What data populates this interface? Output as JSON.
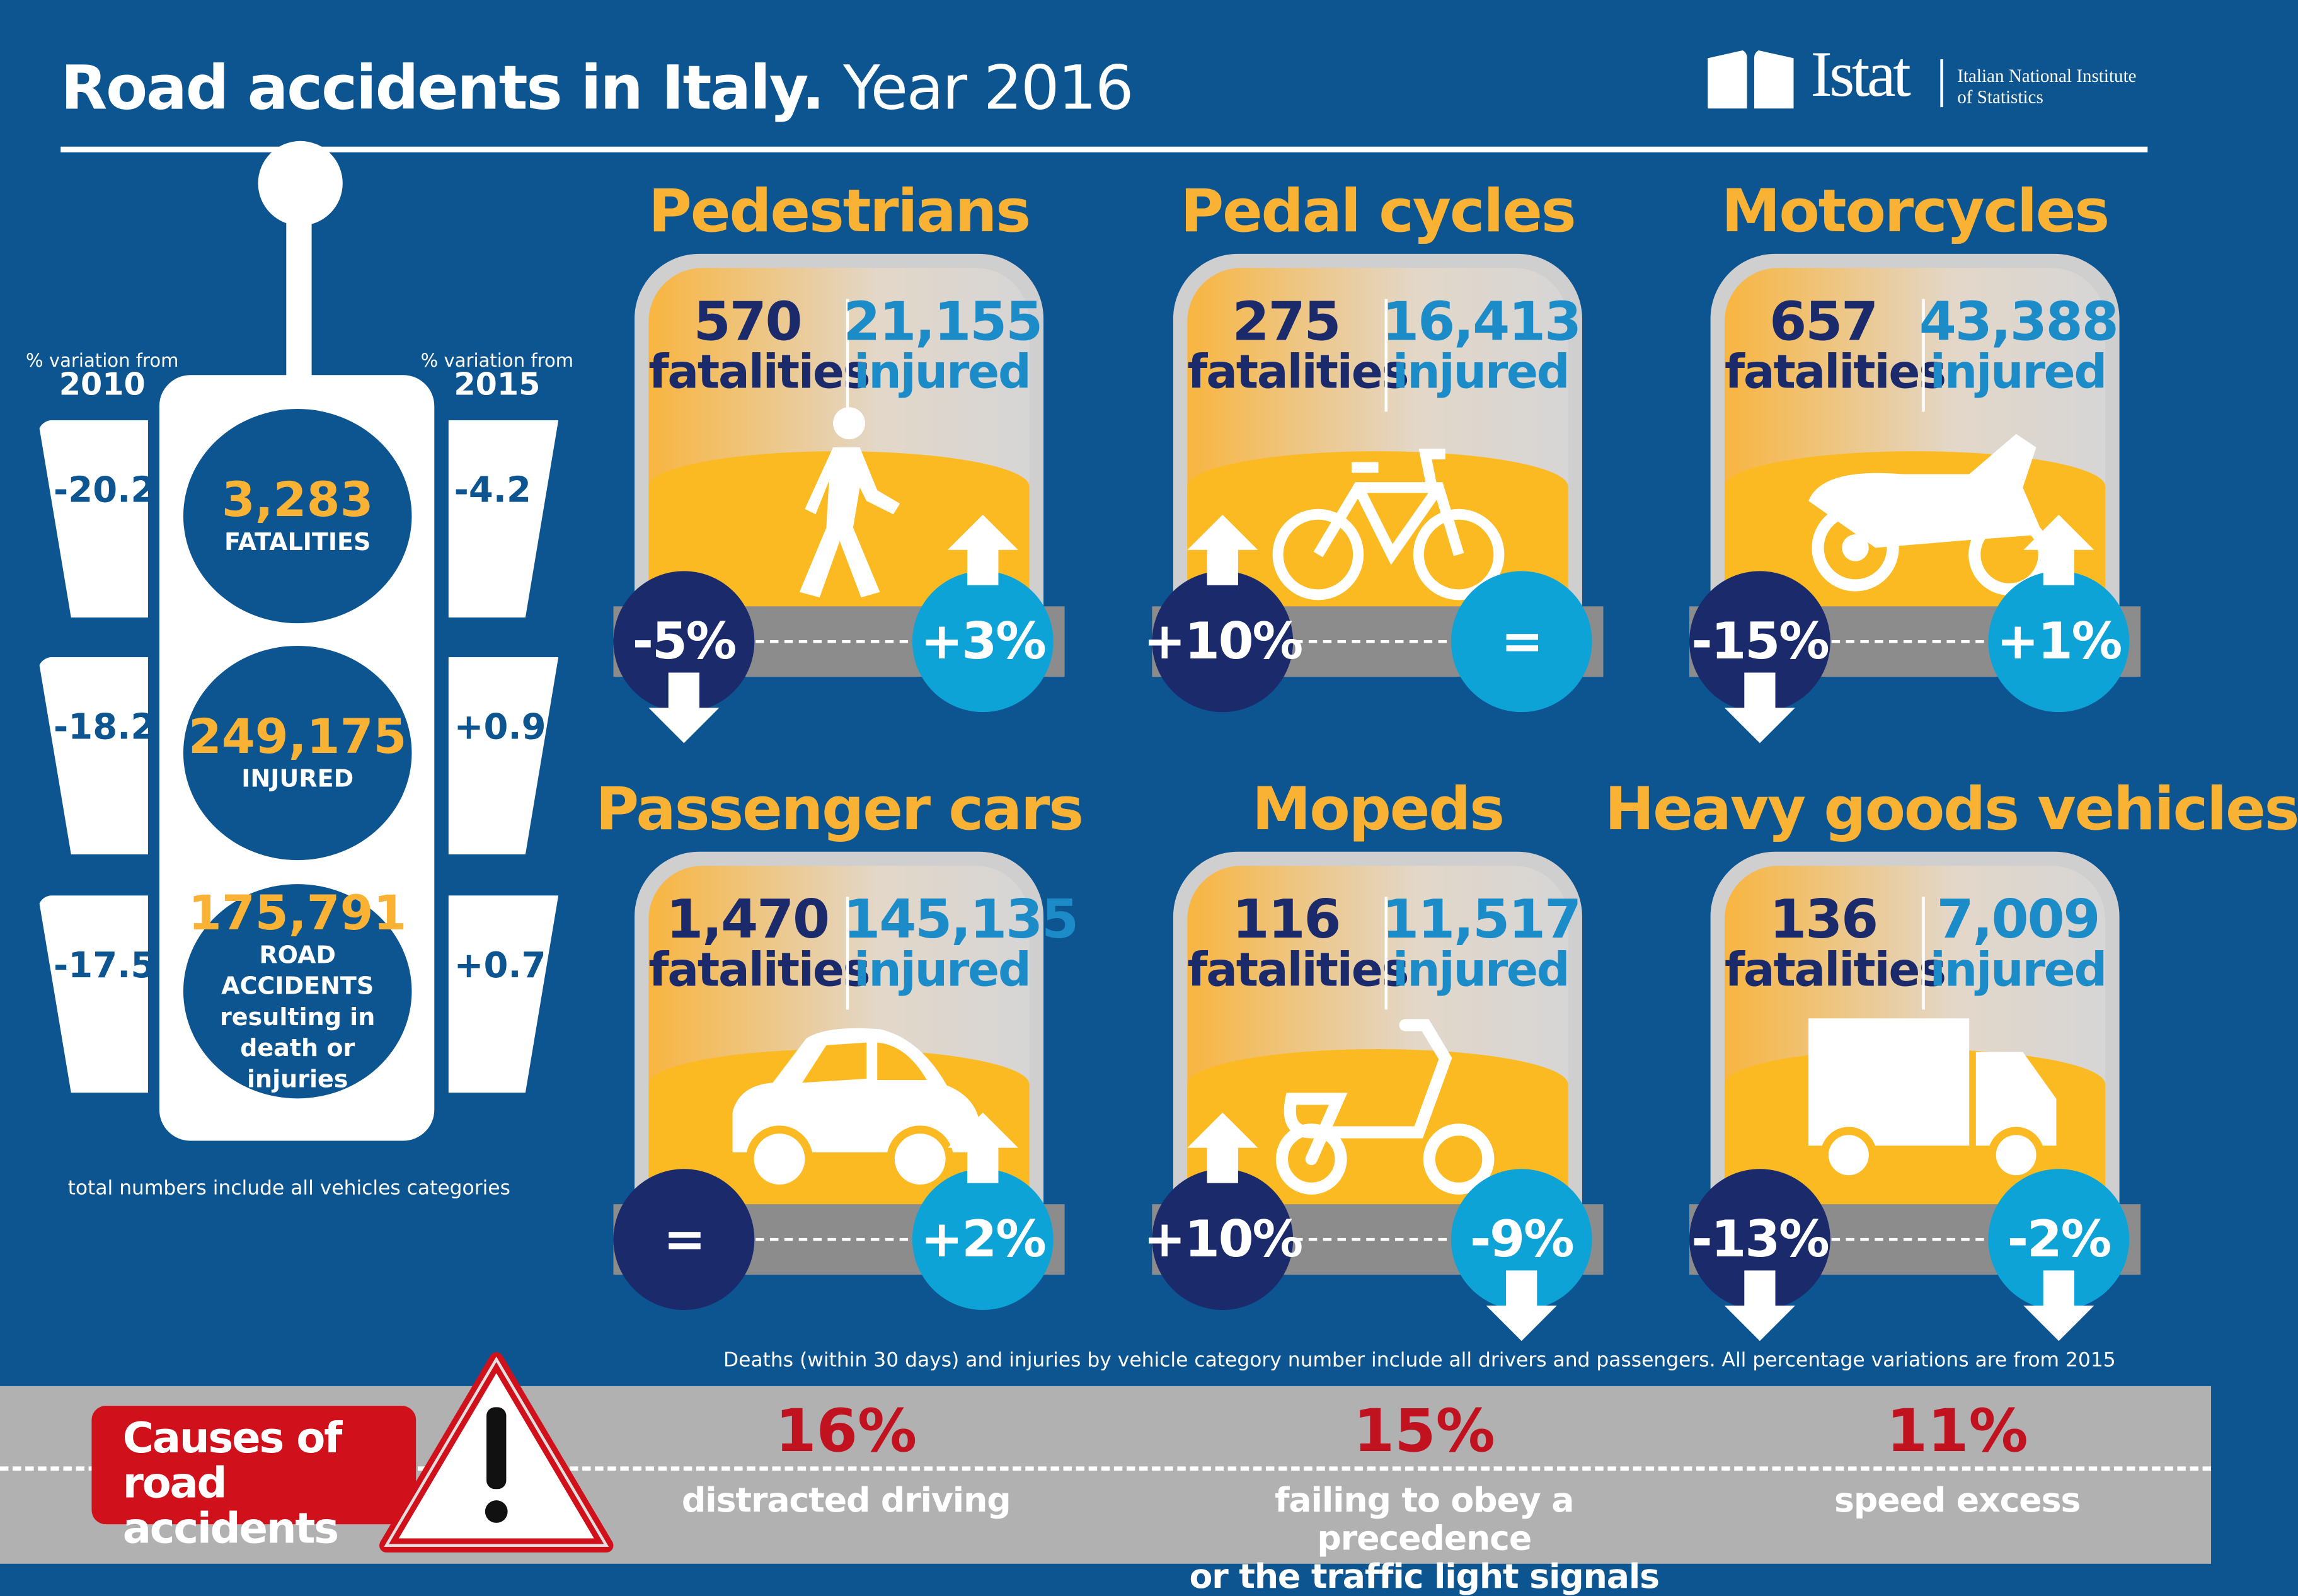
{
  "header": {
    "title_bold": "Road accidents in Italy.",
    "title_light": "Year 2016"
  },
  "logo": {
    "name": "Istat",
    "line1": "Italian National Institute",
    "line2": "of Statistics"
  },
  "totals": {
    "left_header": {
      "label": "% variation from",
      "year": "2010"
    },
    "right_header": {
      "label": "% variation from",
      "year": "2015"
    },
    "rows": [
      {
        "value": "3,283",
        "label": "FATALITIES",
        "var2010": "-20.2",
        "var2015": "-4.2"
      },
      {
        "value": "249,175",
        "label": "INJURED",
        "var2010": "-18.2",
        "var2015": "+0.9"
      },
      {
        "value": "175,791",
        "label": "ROAD ACCIDENTS resulting in death or injuries",
        "var2010": "-17.5",
        "var2015": "+0.7"
      }
    ],
    "note": "total numbers include all vehicles categories"
  },
  "colors": {
    "background": "#0c5590",
    "accent": "#f9b233",
    "fatalities": "#1b2a6b",
    "injured": "#1b8cc8",
    "warning": "#d0111b"
  },
  "categories": [
    {
      "title": "Pedestrians",
      "fatalities": "570",
      "injured": "21,155",
      "fat_label": "fatalities",
      "inj_label": "injured",
      "fat_change": "-5%",
      "fat_dir": "down",
      "inj_change": "+3%",
      "inj_dir": "up",
      "icon": "pedestrian-icon"
    },
    {
      "title": "Pedal cycles",
      "fatalities": "275",
      "injured": "16,413",
      "fat_label": "fatalities",
      "inj_label": "injured",
      "fat_change": "+10%",
      "fat_dir": "up",
      "inj_change": "=",
      "inj_dir": "none",
      "icon": "bicycle-icon"
    },
    {
      "title": "Motorcycles",
      "fatalities": "657",
      "injured": "43,388",
      "fat_label": "fatalities",
      "inj_label": "injured",
      "fat_change": "-15%",
      "fat_dir": "down",
      "inj_change": "+1%",
      "inj_dir": "up",
      "icon": "motorcycle-icon"
    },
    {
      "title": "Passenger cars",
      "fatalities": "1,470",
      "injured": "145,135",
      "fat_label": "fatalities",
      "inj_label": "injured",
      "fat_change": "=",
      "fat_dir": "none",
      "inj_change": "+2%",
      "inj_dir": "up",
      "icon": "car-icon"
    },
    {
      "title": "Mopeds",
      "fatalities": "116",
      "injured": "11,517",
      "fat_label": "fatalities",
      "inj_label": "injured",
      "fat_change": "+10%",
      "fat_dir": "up",
      "inj_change": "-9%",
      "inj_dir": "down",
      "icon": "moped-icon"
    },
    {
      "title": "Heavy goods vehicles",
      "fatalities": "136",
      "injured": "7,009",
      "fat_label": "fatalities",
      "inj_label": "injured",
      "fat_change": "-13%",
      "fat_dir": "down",
      "inj_change": "-2%",
      "inj_dir": "down",
      "icon": "truck-icon"
    }
  ],
  "footnote": "Deaths (within 30 days) and injuries by vehicle category number include all drivers and passengers. All percentage variations are from 2015",
  "causes": {
    "title_line1": "Causes of",
    "title_line2": "road accidents",
    "items": [
      {
        "pct": "16%",
        "line1": "distracted driving",
        "line2": ""
      },
      {
        "pct": "15%",
        "line1": "failing to obey a precedence",
        "line2": "or the traffic light signals"
      },
      {
        "pct": "11%",
        "line1": "speed excess",
        "line2": ""
      }
    ]
  }
}
